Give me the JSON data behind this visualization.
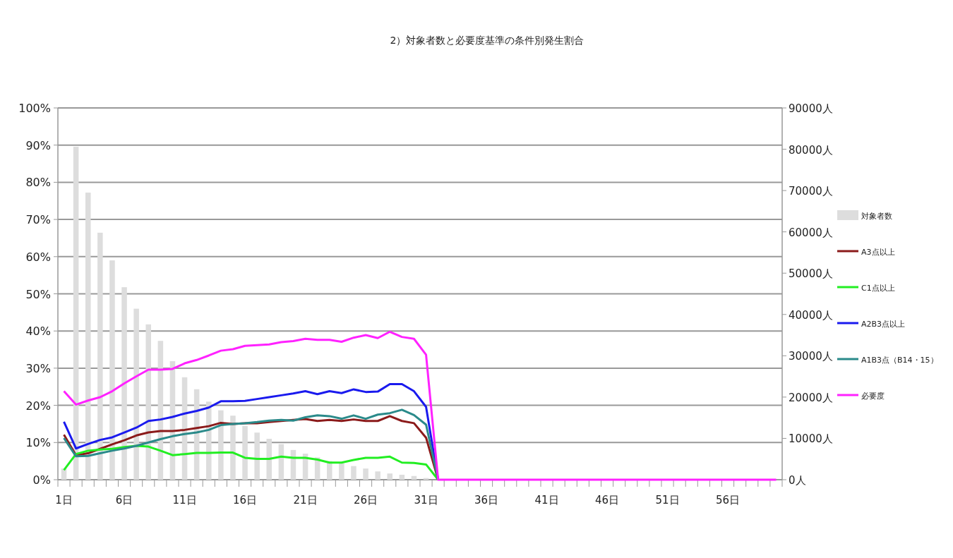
{
  "chart_data": {
    "type": "line",
    "title": "2）対象者数と必要度基準の条件別発生割合",
    "categories": [
      "1日",
      null,
      null,
      null,
      null,
      "6日",
      null,
      null,
      null,
      null,
      "11日",
      null,
      null,
      null,
      null,
      "16日",
      null,
      null,
      null,
      null,
      "21日",
      null,
      null,
      null,
      null,
      "26日",
      null,
      null,
      null,
      null,
      "31日",
      null,
      null,
      null,
      null,
      "36日",
      null,
      null,
      null,
      null,
      "41日",
      null,
      null,
      null,
      null,
      "46日",
      null,
      null,
      null,
      null,
      "51日",
      null,
      null,
      null,
      null,
      "56日",
      null,
      null,
      null,
      null
    ],
    "series": [
      {
        "name": "対象者数",
        "type": "bar",
        "axis": "y2",
        "color": "#dddddd",
        "values": [
          2700,
          80600,
          69500,
          59800,
          53100,
          46600,
          41400,
          37600,
          33600,
          28700,
          24800,
          21900,
          18900,
          16800,
          15500,
          13000,
          11400,
          9900,
          8600,
          7200,
          6300,
          5400,
          4500,
          4000,
          3300,
          2700,
          2000,
          1500,
          1200,
          900,
          400,
          null,
          null,
          null,
          null,
          null,
          null,
          null,
          null,
          null,
          null,
          null,
          null,
          null,
          null,
          null,
          null,
          null,
          null,
          null,
          null,
          null,
          null,
          null,
          null,
          null,
          null,
          null,
          null,
          null
        ]
      },
      {
        "name": "A3点以上",
        "color": "#8b1a1a",
        "values": [
          12.1,
          6.6,
          7.1,
          8.3,
          9.5,
          10.6,
          11.9,
          12.7,
          13.1,
          13.1,
          13.4,
          13.9,
          14.4,
          15.3,
          15.0,
          15.2,
          15.2,
          15.5,
          15.8,
          16.1,
          16.3,
          15.8,
          16.1,
          15.8,
          16.2,
          15.8,
          15.8,
          17.1,
          15.8,
          15.2,
          11.3,
          0,
          null,
          null,
          null,
          null,
          null,
          null,
          null,
          null,
          null,
          null,
          null,
          null,
          null,
          null,
          null,
          null,
          null,
          null,
          null,
          null,
          null,
          null,
          null,
          null,
          null,
          null,
          null,
          null
        ]
      },
      {
        "name": "C1点以上",
        "color": "#22ee22",
        "values": [
          2.6,
          6.9,
          7.8,
          8.1,
          8.3,
          8.8,
          9.1,
          8.9,
          7.8,
          6.6,
          6.9,
          7.2,
          7.2,
          7.3,
          7.3,
          5.9,
          5.6,
          5.6,
          6.2,
          5.9,
          5.9,
          5.4,
          4.6,
          4.6,
          5.3,
          5.9,
          5.9,
          6.2,
          4.6,
          4.5,
          4.1,
          0,
          null,
          null,
          null,
          null,
          null,
          null,
          null,
          null,
          null,
          null,
          null,
          null,
          null,
          null,
          null,
          null,
          null,
          null,
          null,
          null,
          null,
          null,
          null,
          null,
          null,
          null,
          null,
          null
        ]
      },
      {
        "name": "A2B3点以上",
        "color": "#1a1aee",
        "values": [
          15.6,
          8.4,
          9.6,
          10.7,
          11.4,
          12.7,
          14.0,
          15.8,
          16.2,
          16.9,
          17.8,
          18.5,
          19.4,
          21.1,
          21.1,
          21.2,
          21.7,
          22.2,
          22.7,
          23.2,
          23.8,
          23.0,
          23.8,
          23.3,
          24.3,
          23.6,
          23.7,
          25.7,
          25.7,
          23.8,
          19.6,
          0,
          null,
          null,
          null,
          null,
          null,
          null,
          null,
          null,
          null,
          null,
          null,
          null,
          null,
          null,
          null,
          null,
          null,
          null,
          null,
          null,
          null,
          null,
          null,
          null,
          null,
          null,
          null,
          null
        ]
      },
      {
        "name": "A1B3点（B14・15）",
        "color": "#2a8a8a",
        "values": [
          11.2,
          6.3,
          6.4,
          7.1,
          7.8,
          8.4,
          9.1,
          10.0,
          10.9,
          11.7,
          12.3,
          12.7,
          13.4,
          14.7,
          15.0,
          15.2,
          15.5,
          15.9,
          16.1,
          15.9,
          16.8,
          17.3,
          17.1,
          16.4,
          17.3,
          16.4,
          17.5,
          17.9,
          18.8,
          17.4,
          14.8,
          0,
          null,
          null,
          null,
          null,
          null,
          null,
          null,
          null,
          null,
          null,
          null,
          null,
          null,
          null,
          null,
          null,
          null,
          null,
          null,
          null,
          null,
          null,
          null,
          null,
          null,
          null,
          null,
          null
        ]
      },
      {
        "name": "必要度",
        "color": "#ff22ff",
        "values": [
          23.8,
          20.2,
          21.3,
          22.2,
          23.8,
          25.9,
          27.8,
          29.6,
          29.6,
          29.8,
          31.3,
          32.2,
          33.4,
          34.7,
          35.1,
          36.0,
          36.2,
          36.4,
          37.0,
          37.3,
          37.9,
          37.6,
          37.6,
          37.1,
          38.2,
          38.9,
          38.1,
          39.8,
          38.4,
          37.9,
          33.6,
          0,
          0,
          0,
          0,
          0,
          0,
          0,
          0,
          0,
          0,
          0,
          0,
          0,
          0,
          0,
          0,
          0,
          0,
          0,
          0,
          0,
          0,
          0,
          0,
          0,
          0,
          0,
          0,
          0
        ]
      }
    ],
    "ylim": [
      0,
      100
    ],
    "yticks": [
      {
        "value": 0,
        "label": "0%"
      },
      {
        "value": 10,
        "label": "10%"
      },
      {
        "value": 20,
        "label": "20%"
      },
      {
        "value": 30,
        "label": "30%"
      },
      {
        "value": 40,
        "label": "40%"
      },
      {
        "value": 50,
        "label": "50%"
      },
      {
        "value": 60,
        "label": "60%"
      },
      {
        "value": 70,
        "label": "70%"
      },
      {
        "value": 80,
        "label": "80%"
      },
      {
        "value": 90,
        "label": "90%"
      },
      {
        "value": 100,
        "label": "100%"
      }
    ],
    "y2lim": [
      0,
      90000
    ],
    "y2ticks": [
      {
        "value": 0,
        "label": "0人"
      },
      {
        "value": 10000,
        "label": "10000人"
      },
      {
        "value": 20000,
        "label": "20000人"
      },
      {
        "value": 30000,
        "label": "30000人"
      },
      {
        "value": 40000,
        "label": "40000人"
      },
      {
        "value": 50000,
        "label": "50000人"
      },
      {
        "value": 60000,
        "label": "60000人"
      },
      {
        "value": 70000,
        "label": "70000人"
      },
      {
        "value": 80000,
        "label": "80000人"
      },
      {
        "value": 90000,
        "label": "90000人"
      }
    ],
    "grid": "y",
    "legend": "right"
  }
}
